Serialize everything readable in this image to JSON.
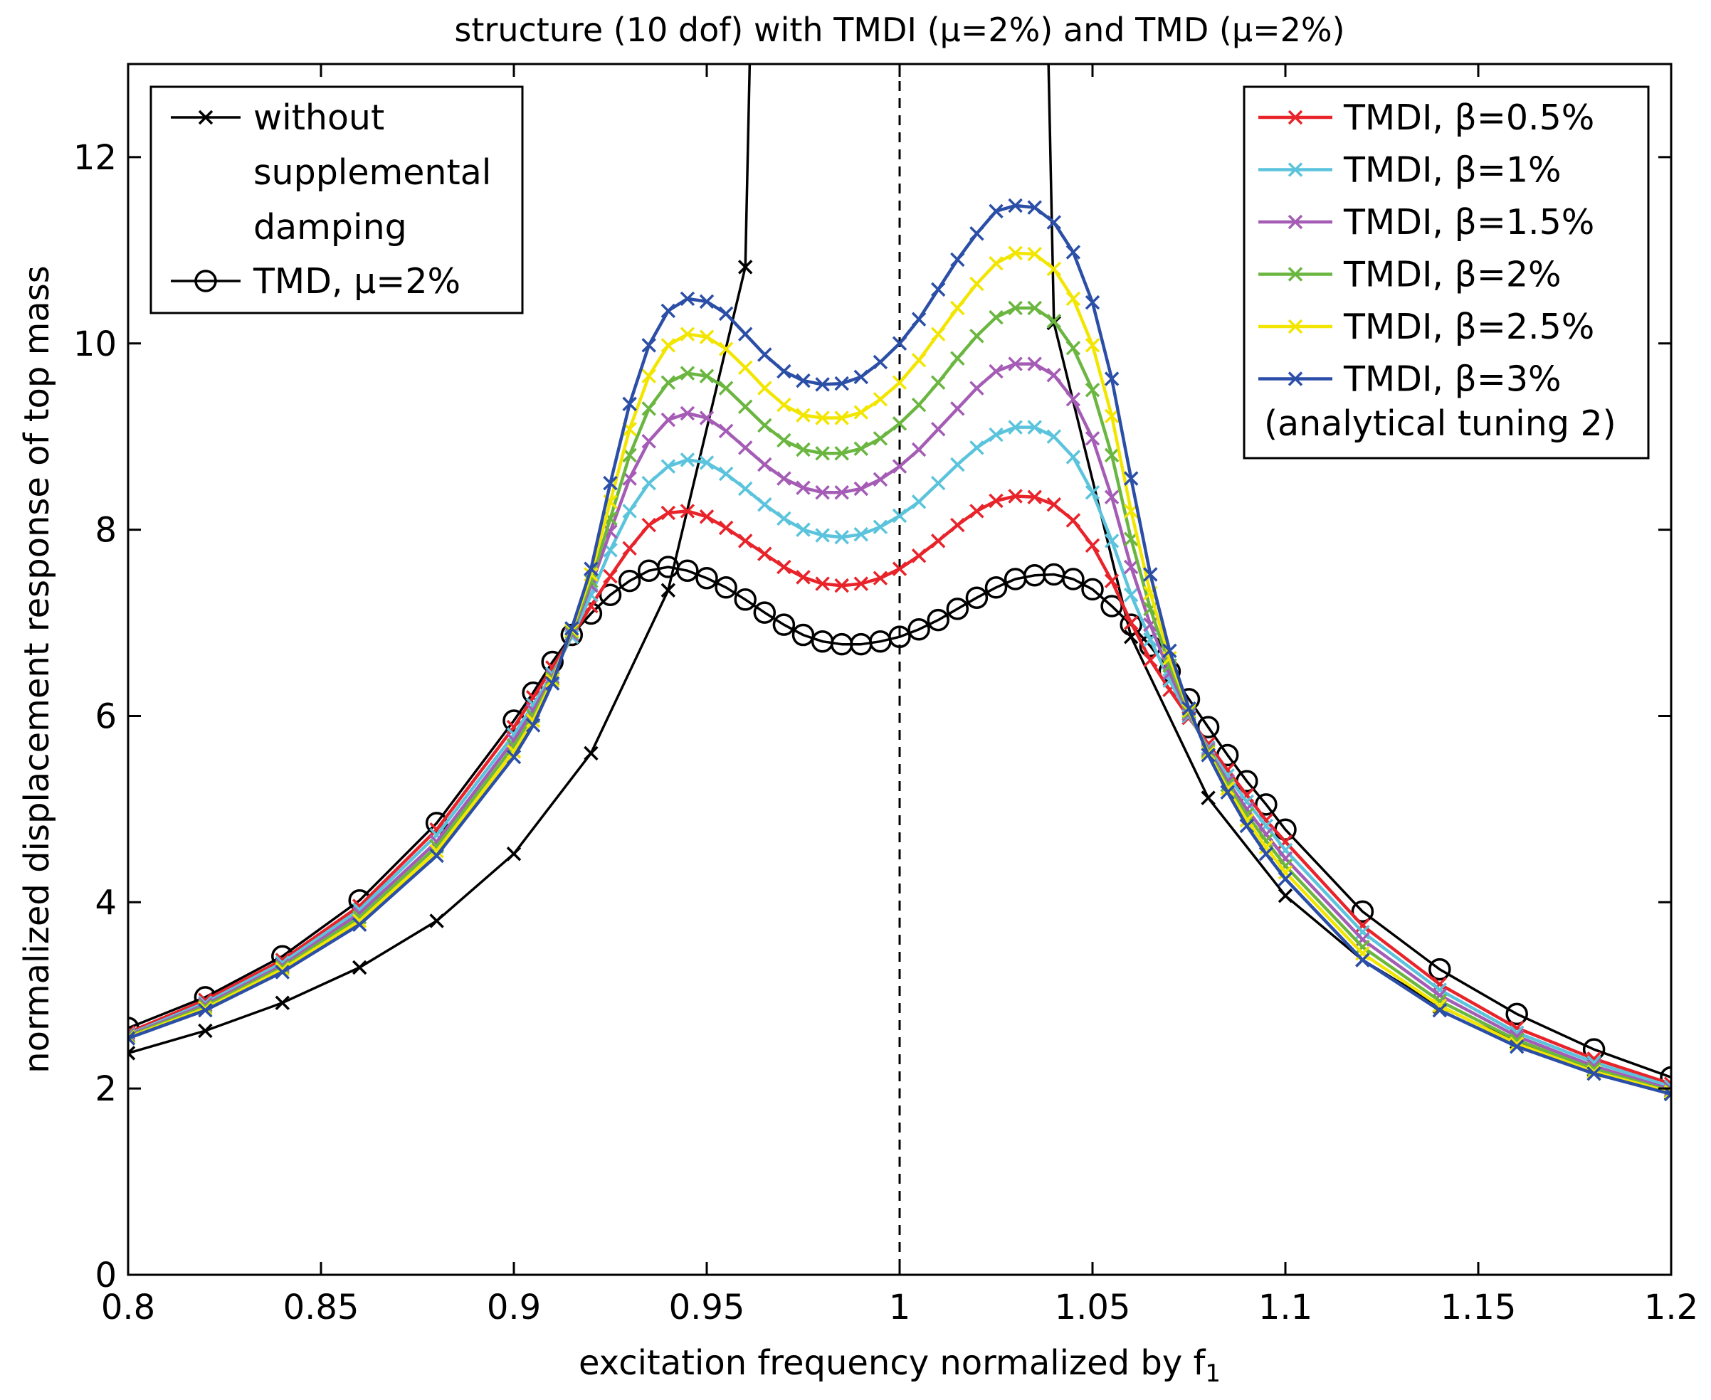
{
  "chart_data": {
    "type": "line",
    "title": "structure (10 dof) with TMDI (μ=2%) and TMD (μ=2%)",
    "xlabel": "excitation frequency normalized by f",
    "xlabel_subscript": "1",
    "ylabel": "normalized displacement response of top mass",
    "xlim": [
      0.8,
      1.2
    ],
    "ylim": [
      0,
      13
    ],
    "x_ticks": [
      0.8,
      0.85,
      0.9,
      0.95,
      1,
      1.05,
      1.1,
      1.15,
      1.2
    ],
    "x_tick_labels": [
      "0.8",
      "0.85",
      "0.9",
      "0.95",
      "1",
      "1.05",
      "1.1",
      "1.15",
      "1.2"
    ],
    "y_ticks": [
      0,
      2,
      4,
      6,
      8,
      10,
      12
    ],
    "y_tick_labels": [
      "0",
      "2",
      "4",
      "6",
      "8",
      "10",
      "12"
    ],
    "reference_line_x": 1.0,
    "left_legend": {
      "entries": [
        {
          "series": "without",
          "lines": [
            "without",
            "supplemental",
            "damping"
          ]
        },
        {
          "series": "tmd",
          "lines": [
            "TMD, μ=2%"
          ]
        }
      ]
    },
    "right_legend": {
      "entries": [
        "TMDI, β=0.5%",
        "TMDI, β=1%",
        "TMDI, β=1.5%",
        "TMDI, β=2%",
        "TMDI, β=2.5%",
        "TMDI, β=3%"
      ],
      "note": "(analytical tuning 2)"
    },
    "series": [
      {
        "id": "without",
        "name": "without supplemental damping",
        "color": "#000000",
        "marker": "x",
        "x": [
          0.8,
          0.82,
          0.84,
          0.86,
          0.88,
          0.9,
          0.92,
          0.94,
          0.96,
          1.04,
          1.06,
          1.08,
          1.1,
          1.12,
          1.14,
          1.16,
          1.18,
          1.2
        ],
        "y": [
          2.38,
          2.62,
          2.92,
          3.3,
          3.8,
          4.52,
          5.6,
          7.35,
          10.82,
          10.22,
          6.85,
          5.12,
          4.07,
          3.38,
          2.88,
          2.5,
          2.2,
          1.95
        ]
      },
      {
        "id": "tmd",
        "name": "TMD, μ=2%",
        "color": "#000000",
        "marker": "o",
        "x": [
          0.8,
          0.82,
          0.84,
          0.86,
          0.88,
          0.9,
          0.905,
          0.91,
          0.915,
          0.92,
          0.925,
          0.93,
          0.935,
          0.94,
          0.945,
          0.95,
          0.955,
          0.96,
          0.965,
          0.97,
          0.975,
          0.98,
          0.985,
          0.99,
          0.995,
          1.0,
          1.005,
          1.01,
          1.015,
          1.02,
          1.025,
          1.03,
          1.035,
          1.04,
          1.045,
          1.05,
          1.055,
          1.06,
          1.065,
          1.07,
          1.075,
          1.08,
          1.085,
          1.09,
          1.095,
          1.1,
          1.12,
          1.14,
          1.16,
          1.18,
          1.2
        ],
        "y": [
          2.65,
          2.98,
          3.42,
          4.02,
          4.85,
          5.95,
          6.25,
          6.58,
          6.87,
          7.1,
          7.3,
          7.45,
          7.56,
          7.6,
          7.56,
          7.48,
          7.38,
          7.25,
          7.11,
          6.98,
          6.87,
          6.8,
          6.77,
          6.77,
          6.8,
          6.85,
          6.93,
          7.03,
          7.15,
          7.27,
          7.38,
          7.47,
          7.51,
          7.52,
          7.47,
          7.36,
          7.18,
          6.98,
          6.75,
          6.48,
          6.18,
          5.88,
          5.58,
          5.3,
          5.05,
          4.78,
          3.9,
          3.28,
          2.8,
          2.42,
          2.12
        ]
      },
      {
        "id": "b05",
        "name": "TMDI, β=0.5%",
        "color": "#e8232a",
        "marker": "x",
        "x": [
          0.8,
          0.82,
          0.84,
          0.86,
          0.88,
          0.9,
          0.905,
          0.91,
          0.915,
          0.92,
          0.925,
          0.93,
          0.935,
          0.94,
          0.945,
          0.95,
          0.955,
          0.96,
          0.965,
          0.97,
          0.975,
          0.98,
          0.985,
          0.99,
          0.995,
          1.0,
          1.005,
          1.01,
          1.015,
          1.02,
          1.025,
          1.03,
          1.035,
          1.04,
          1.045,
          1.05,
          1.055,
          1.06,
          1.065,
          1.07,
          1.075,
          1.08,
          1.085,
          1.09,
          1.095,
          1.1,
          1.12,
          1.14,
          1.16,
          1.18,
          1.2
        ],
        "y": [
          2.6,
          2.95,
          3.38,
          3.96,
          4.78,
          5.88,
          6.2,
          6.52,
          6.85,
          7.18,
          7.5,
          7.8,
          8.05,
          8.18,
          8.2,
          8.14,
          8.02,
          7.88,
          7.74,
          7.6,
          7.49,
          7.42,
          7.4,
          7.42,
          7.48,
          7.58,
          7.72,
          7.88,
          8.05,
          8.2,
          8.31,
          8.36,
          8.35,
          8.27,
          8.1,
          7.83,
          7.45,
          7.0,
          6.6,
          6.28,
          5.98,
          5.7,
          5.42,
          5.15,
          4.88,
          4.65,
          3.75,
          3.12,
          2.65,
          2.32,
          2.05
        ]
      },
      {
        "id": "b1",
        "name": "TMDI, β=1%",
        "color": "#5bc4dc",
        "marker": "x",
        "x": [
          0.8,
          0.82,
          0.84,
          0.86,
          0.88,
          0.9,
          0.905,
          0.91,
          0.915,
          0.92,
          0.925,
          0.93,
          0.935,
          0.94,
          0.945,
          0.95,
          0.955,
          0.96,
          0.965,
          0.97,
          0.975,
          0.98,
          0.985,
          0.99,
          0.995,
          1.0,
          1.005,
          1.01,
          1.015,
          1.02,
          1.025,
          1.03,
          1.035,
          1.04,
          1.045,
          1.05,
          1.055,
          1.06,
          1.065,
          1.07,
          1.075,
          1.08,
          1.085,
          1.09,
          1.095,
          1.1,
          1.12,
          1.14,
          1.16,
          1.18,
          1.2
        ],
        "y": [
          2.58,
          2.92,
          3.35,
          3.92,
          4.72,
          5.8,
          6.12,
          6.45,
          6.85,
          7.3,
          7.78,
          8.2,
          8.5,
          8.68,
          8.75,
          8.72,
          8.6,
          8.44,
          8.27,
          8.12,
          8.0,
          7.94,
          7.92,
          7.95,
          8.03,
          8.15,
          8.3,
          8.5,
          8.7,
          8.88,
          9.02,
          9.1,
          9.1,
          9.0,
          8.78,
          8.4,
          7.88,
          7.3,
          6.82,
          6.38,
          6.0,
          5.66,
          5.36,
          5.08,
          4.82,
          4.56,
          3.68,
          3.06,
          2.6,
          2.28,
          2.02
        ]
      },
      {
        "id": "b15",
        "name": "TMDI, β=1.5%",
        "color": "#a45cb5",
        "marker": "x",
        "x": [
          0.8,
          0.82,
          0.84,
          0.86,
          0.88,
          0.9,
          0.905,
          0.91,
          0.915,
          0.92,
          0.925,
          0.93,
          0.935,
          0.94,
          0.945,
          0.95,
          0.955,
          0.96,
          0.965,
          0.97,
          0.975,
          0.98,
          0.985,
          0.99,
          0.995,
          1.0,
          1.005,
          1.01,
          1.015,
          1.02,
          1.025,
          1.03,
          1.035,
          1.04,
          1.045,
          1.05,
          1.055,
          1.06,
          1.065,
          1.07,
          1.075,
          1.08,
          1.085,
          1.09,
          1.095,
          1.1,
          1.12,
          1.14,
          1.16,
          1.18,
          1.2
        ],
        "y": [
          2.57,
          2.9,
          3.32,
          3.88,
          4.65,
          5.74,
          6.06,
          6.42,
          6.88,
          7.4,
          7.98,
          8.55,
          8.95,
          9.18,
          9.25,
          9.2,
          9.06,
          8.88,
          8.7,
          8.55,
          8.45,
          8.4,
          8.4,
          8.44,
          8.54,
          8.68,
          8.86,
          9.08,
          9.3,
          9.52,
          9.7,
          9.78,
          9.78,
          9.66,
          9.4,
          8.98,
          8.35,
          7.6,
          6.98,
          6.46,
          6.02,
          5.64,
          5.3,
          5.0,
          4.73,
          4.47,
          3.6,
          3.0,
          2.56,
          2.24,
          1.99
        ]
      },
      {
        "id": "b2",
        "name": "TMDI, β=2%",
        "color": "#6ab640",
        "marker": "x",
        "x": [
          0.8,
          0.82,
          0.84,
          0.86,
          0.88,
          0.9,
          0.905,
          0.91,
          0.915,
          0.92,
          0.925,
          0.93,
          0.935,
          0.94,
          0.945,
          0.95,
          0.955,
          0.96,
          0.965,
          0.97,
          0.975,
          0.98,
          0.985,
          0.99,
          0.995,
          1.0,
          1.005,
          1.01,
          1.015,
          1.02,
          1.025,
          1.03,
          1.035,
          1.04,
          1.045,
          1.05,
          1.055,
          1.06,
          1.065,
          1.07,
          1.075,
          1.08,
          1.085,
          1.09,
          1.095,
          1.1,
          1.12,
          1.14,
          1.16,
          1.18,
          1.2
        ],
        "y": [
          2.56,
          2.88,
          3.3,
          3.84,
          4.6,
          5.68,
          6.0,
          6.4,
          6.9,
          7.45,
          8.12,
          8.8,
          9.3,
          9.58,
          9.68,
          9.65,
          9.52,
          9.32,
          9.12,
          8.96,
          8.86,
          8.82,
          8.82,
          8.87,
          8.98,
          9.14,
          9.34,
          9.58,
          9.84,
          10.08,
          10.28,
          10.38,
          10.38,
          10.24,
          9.95,
          9.5,
          8.8,
          7.9,
          7.15,
          6.54,
          6.04,
          5.62,
          5.26,
          4.94,
          4.66,
          4.39,
          3.52,
          2.94,
          2.52,
          2.21,
          1.97
        ]
      },
      {
        "id": "b25",
        "name": "TMDI, β=2.5%",
        "color": "#f2e600",
        "marker": "x",
        "x": [
          0.8,
          0.82,
          0.84,
          0.86,
          0.88,
          0.9,
          0.905,
          0.91,
          0.915,
          0.92,
          0.925,
          0.93,
          0.935,
          0.94,
          0.945,
          0.95,
          0.955,
          0.96,
          0.965,
          0.97,
          0.975,
          0.98,
          0.985,
          0.99,
          0.995,
          1.0,
          1.005,
          1.01,
          1.015,
          1.02,
          1.025,
          1.03,
          1.035,
          1.04,
          1.045,
          1.05,
          1.055,
          1.06,
          1.065,
          1.07,
          1.075,
          1.08,
          1.085,
          1.09,
          1.095,
          1.1,
          1.12,
          1.14,
          1.16,
          1.18,
          1.2
        ],
        "y": [
          2.55,
          2.86,
          3.28,
          3.8,
          4.55,
          5.62,
          5.95,
          6.38,
          6.92,
          7.52,
          8.3,
          9.08,
          9.65,
          9.98,
          10.1,
          10.07,
          9.94,
          9.74,
          9.52,
          9.34,
          9.23,
          9.2,
          9.2,
          9.26,
          9.4,
          9.58,
          9.82,
          10.1,
          10.38,
          10.64,
          10.86,
          10.97,
          10.96,
          10.8,
          10.48,
          9.98,
          9.22,
          8.2,
          7.32,
          6.62,
          6.06,
          5.6,
          5.22,
          4.88,
          4.59,
          4.32,
          3.45,
          2.89,
          2.48,
          2.18,
          1.96
        ]
      },
      {
        "id": "b3",
        "name": "TMDI, β=3%",
        "color": "#2b4ea6",
        "marker": "x",
        "x": [
          0.8,
          0.82,
          0.84,
          0.86,
          0.88,
          0.9,
          0.905,
          0.91,
          0.915,
          0.92,
          0.925,
          0.93,
          0.935,
          0.94,
          0.945,
          0.95,
          0.955,
          0.96,
          0.965,
          0.97,
          0.975,
          0.98,
          0.985,
          0.99,
          0.995,
          1.0,
          1.005,
          1.01,
          1.015,
          1.02,
          1.025,
          1.03,
          1.035,
          1.04,
          1.045,
          1.05,
          1.055,
          1.06,
          1.065,
          1.07,
          1.075,
          1.08,
          1.085,
          1.09,
          1.095,
          1.1,
          1.12,
          1.14,
          1.16,
          1.18,
          1.2
        ],
        "y": [
          2.54,
          2.84,
          3.25,
          3.76,
          4.5,
          5.56,
          5.9,
          6.35,
          6.94,
          7.58,
          8.5,
          9.35,
          9.98,
          10.35,
          10.48,
          10.45,
          10.32,
          10.1,
          9.88,
          9.7,
          9.6,
          9.56,
          9.57,
          9.64,
          9.8,
          10.0,
          10.26,
          10.58,
          10.9,
          11.18,
          11.42,
          11.48,
          11.46,
          11.3,
          10.98,
          10.44,
          9.62,
          8.55,
          7.52,
          6.7,
          6.08,
          5.58,
          5.18,
          4.82,
          4.52,
          4.25,
          3.38,
          2.84,
          2.45,
          2.16,
          1.94
        ]
      }
    ]
  }
}
